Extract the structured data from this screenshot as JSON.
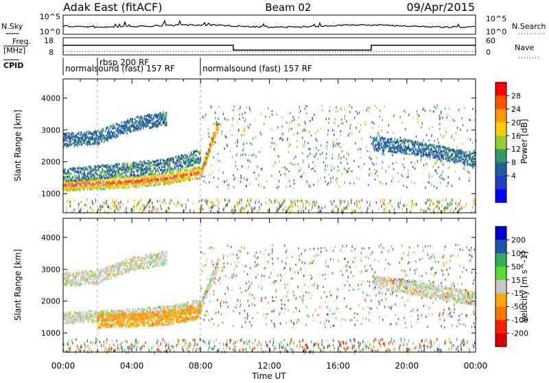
{
  "header": {
    "station": "Adak East (fitACF)",
    "beam": "Beam 02",
    "date": "09/Apr/2015"
  },
  "noise_panel": {
    "left_label": "N.Sky",
    "right_label": "N.Search",
    "ticks_left": [
      "10^5",
      "10^0"
    ],
    "ticks_right": [
      "10^5",
      "10^0"
    ]
  },
  "freq_panel": {
    "left_label_1": "Freq.",
    "left_label_2": "[MHz]",
    "right_label": "Nave",
    "ticks_left": [
      "18",
      "8"
    ],
    "ticks_right": [
      "60",
      "0"
    ]
  },
  "cpid_panel": {
    "label": "CPID",
    "programs": [
      {
        "name": "normalsound (fast) 157 RF",
        "start_hour": 0.0
      },
      {
        "name": "rbsp 200 RF",
        "start_hour": 2.0
      },
      {
        "name": "normalsound (fast) 157 RF",
        "start_hour": 8.0
      }
    ]
  },
  "power_colorbar": {
    "label": "Power [dB]",
    "ticks": [
      "28",
      "24",
      "20",
      "16",
      "12",
      "8",
      "4"
    ],
    "colors": [
      "#ff0000",
      "#ff5500",
      "#ff9900",
      "#ffcc00",
      "#99cc33",
      "#339966",
      "#1f5f9f",
      "#1f3fbf",
      "#0000ff"
    ]
  },
  "velocity_colorbar": {
    "label": "Velocity [m s^-1]",
    "ticks": [
      "200",
      "100",
      "50",
      "15",
      "-15",
      "-50",
      "-100",
      "-200"
    ],
    "colors": [
      "#0000cc",
      "#2255aa",
      "#33aa55",
      "#55dd33",
      "#c8c8c8",
      "#ffaa00",
      "#ff7700",
      "#ff2200",
      "#dd0000"
    ]
  },
  "axes": {
    "ylabel": "Slant Range [km]",
    "xlabel": "Time UT",
    "y_ticks": [
      "4000",
      "3000",
      "2000",
      "1000"
    ],
    "x_ticks": [
      "00:00",
      "04:00",
      "08:00",
      "12:00",
      "16:00",
      "20:00",
      "00:00"
    ]
  },
  "chart_data": {
    "type": "heatmap",
    "x_unit": "hours UT",
    "xlim": [
      0,
      24
    ],
    "ylim": [
      400,
      4600
    ],
    "series": [
      {
        "name": "Power [dB]",
        "bands": [
          {
            "t": [
              0,
              2,
              4,
              6,
              8,
              9
            ],
            "range": [
              1300,
              1350,
              1400,
              1500,
              1700,
              3200
            ],
            "value": 20
          },
          {
            "t": [
              0,
              2,
              4,
              6,
              8
            ],
            "range": [
              1600,
              1700,
              1800,
              1900,
              2200
            ],
            "value": 8
          },
          {
            "t": [
              0,
              2,
              4,
              6
            ],
            "range": [
              2700,
              2800,
              3200,
              3400
            ],
            "value": 6
          },
          {
            "t": [
              18,
              20,
              22,
              24
            ],
            "range": [
              2600,
              2500,
              2300,
              2100
            ],
            "value": 6
          }
        ]
      },
      {
        "name": "Velocity [m s^-1]",
        "bands": [
          {
            "t": [
              0,
              2,
              4,
              6,
              8,
              9
            ],
            "range": [
              1500,
              1550,
              1600,
              1700,
              1900,
              3200
            ],
            "value": 0
          },
          {
            "t": [
              2,
              4,
              6,
              8
            ],
            "range": [
              1400,
              1450,
              1500,
              1700
            ],
            "value": -40
          },
          {
            "t": [
              0,
              2,
              4,
              6
            ],
            "range": [
              2700,
              2800,
              3200,
              3400
            ],
            "value": 0
          },
          {
            "t": [
              18,
              20,
              22,
              24
            ],
            "range": [
              2600,
              2500,
              2300,
              2100
            ],
            "value": 0
          }
        ]
      }
    ]
  }
}
